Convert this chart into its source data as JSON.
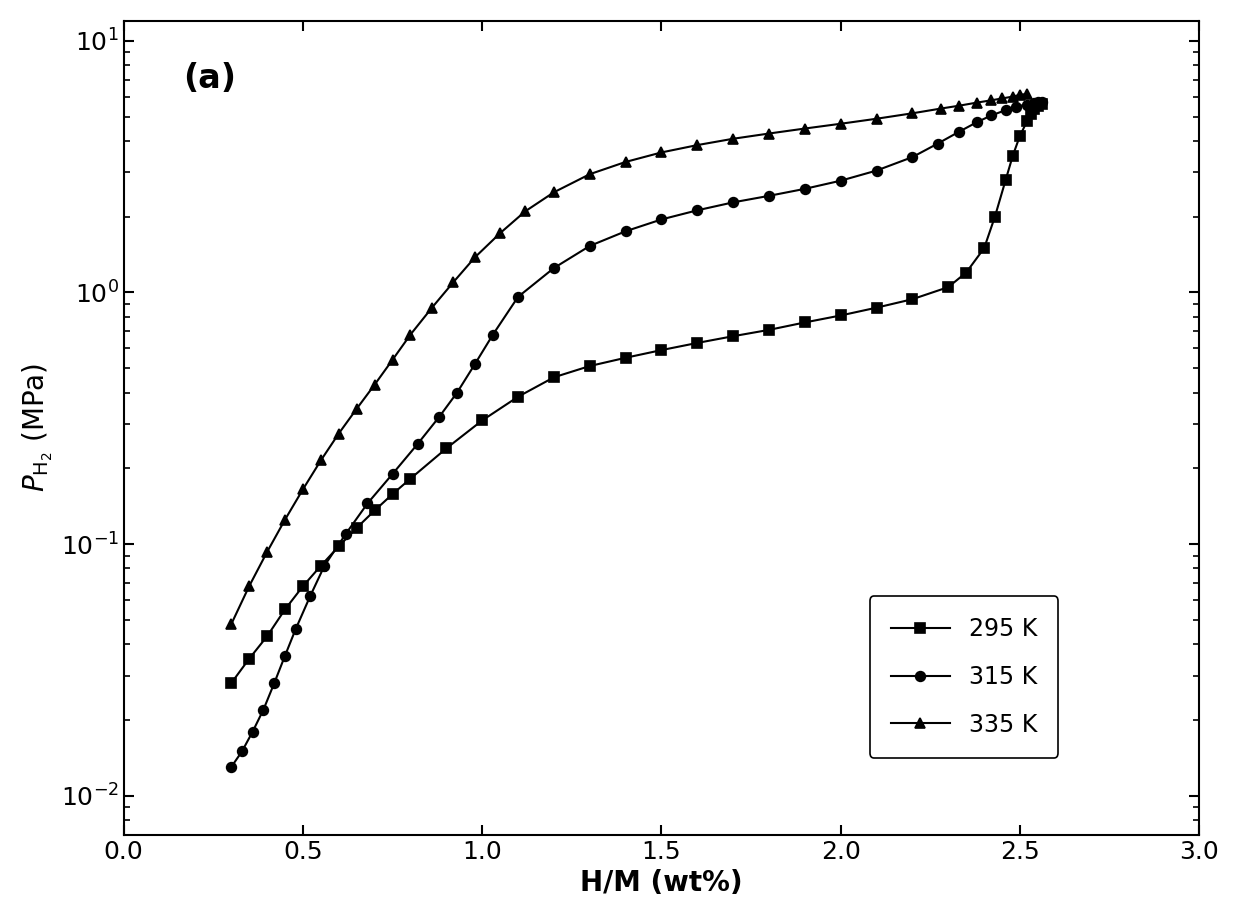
{
  "title_label": "(a)",
  "xlabel": "H/M (wt%)",
  "xlim": [
    0.0,
    3.0
  ],
  "ylim_log": [
    0.007,
    12
  ],
  "xticks": [
    0.0,
    0.5,
    1.0,
    1.5,
    2.0,
    2.5,
    3.0
  ],
  "series": [
    {
      "label": "295 K",
      "marker": "s",
      "x": [
        0.3,
        0.35,
        0.4,
        0.45,
        0.5,
        0.55,
        0.6,
        0.65,
        0.7,
        0.75,
        0.8,
        0.9,
        1.0,
        1.1,
        1.2,
        1.3,
        1.4,
        1.5,
        1.6,
        1.7,
        1.8,
        1.9,
        2.0,
        2.1,
        2.2,
        2.3,
        2.35,
        2.4,
        2.43,
        2.46,
        2.48,
        2.5,
        2.52,
        2.53,
        2.54,
        2.55,
        2.56
      ],
      "y": [
        0.028,
        0.035,
        0.043,
        0.055,
        0.068,
        0.082,
        0.098,
        0.116,
        0.136,
        0.158,
        0.182,
        0.24,
        0.31,
        0.385,
        0.46,
        0.51,
        0.55,
        0.59,
        0.63,
        0.67,
        0.71,
        0.76,
        0.81,
        0.87,
        0.94,
        1.05,
        1.2,
        1.5,
        2.0,
        2.8,
        3.5,
        4.2,
        4.8,
        5.1,
        5.35,
        5.5,
        5.6
      ]
    },
    {
      "label": "315 K",
      "marker": "o",
      "x": [
        0.3,
        0.33,
        0.36,
        0.39,
        0.42,
        0.45,
        0.48,
        0.52,
        0.56,
        0.62,
        0.68,
        0.75,
        0.82,
        0.88,
        0.93,
        0.98,
        1.03,
        1.1,
        1.2,
        1.3,
        1.4,
        1.5,
        1.6,
        1.7,
        1.8,
        1.9,
        2.0,
        2.1,
        2.2,
        2.27,
        2.33,
        2.38,
        2.42,
        2.46,
        2.49,
        2.52,
        2.54,
        2.55,
        2.56
      ],
      "y": [
        0.013,
        0.015,
        0.018,
        0.022,
        0.028,
        0.036,
        0.046,
        0.062,
        0.082,
        0.11,
        0.145,
        0.19,
        0.25,
        0.32,
        0.4,
        0.52,
        0.68,
        0.96,
        1.25,
        1.53,
        1.75,
        1.95,
        2.12,
        2.28,
        2.42,
        2.58,
        2.78,
        3.05,
        3.45,
        3.9,
        4.35,
        4.75,
        5.05,
        5.3,
        5.48,
        5.58,
        5.65,
        5.7,
        5.72
      ]
    },
    {
      "label": "335 K",
      "marker": "^",
      "x": [
        0.3,
        0.35,
        0.4,
        0.45,
        0.5,
        0.55,
        0.6,
        0.65,
        0.7,
        0.75,
        0.8,
        0.86,
        0.92,
        0.98,
        1.05,
        1.12,
        1.2,
        1.3,
        1.4,
        1.5,
        1.6,
        1.7,
        1.8,
        1.9,
        2.0,
        2.1,
        2.2,
        2.28,
        2.33,
        2.38,
        2.42,
        2.45,
        2.48,
        2.5,
        2.52
      ],
      "y": [
        0.048,
        0.068,
        0.093,
        0.125,
        0.165,
        0.215,
        0.275,
        0.345,
        0.43,
        0.54,
        0.68,
        0.87,
        1.1,
        1.38,
        1.72,
        2.1,
        2.5,
        2.95,
        3.3,
        3.6,
        3.85,
        4.08,
        4.28,
        4.48,
        4.68,
        4.9,
        5.15,
        5.38,
        5.52,
        5.68,
        5.8,
        5.9,
        6.0,
        6.1,
        6.15
      ]
    }
  ],
  "color": "black",
  "linewidth": 1.5,
  "markersize": 7,
  "background_color": "#ffffff",
  "label_fontsize": 20,
  "tick_fontsize": 18,
  "legend_fontsize": 17
}
